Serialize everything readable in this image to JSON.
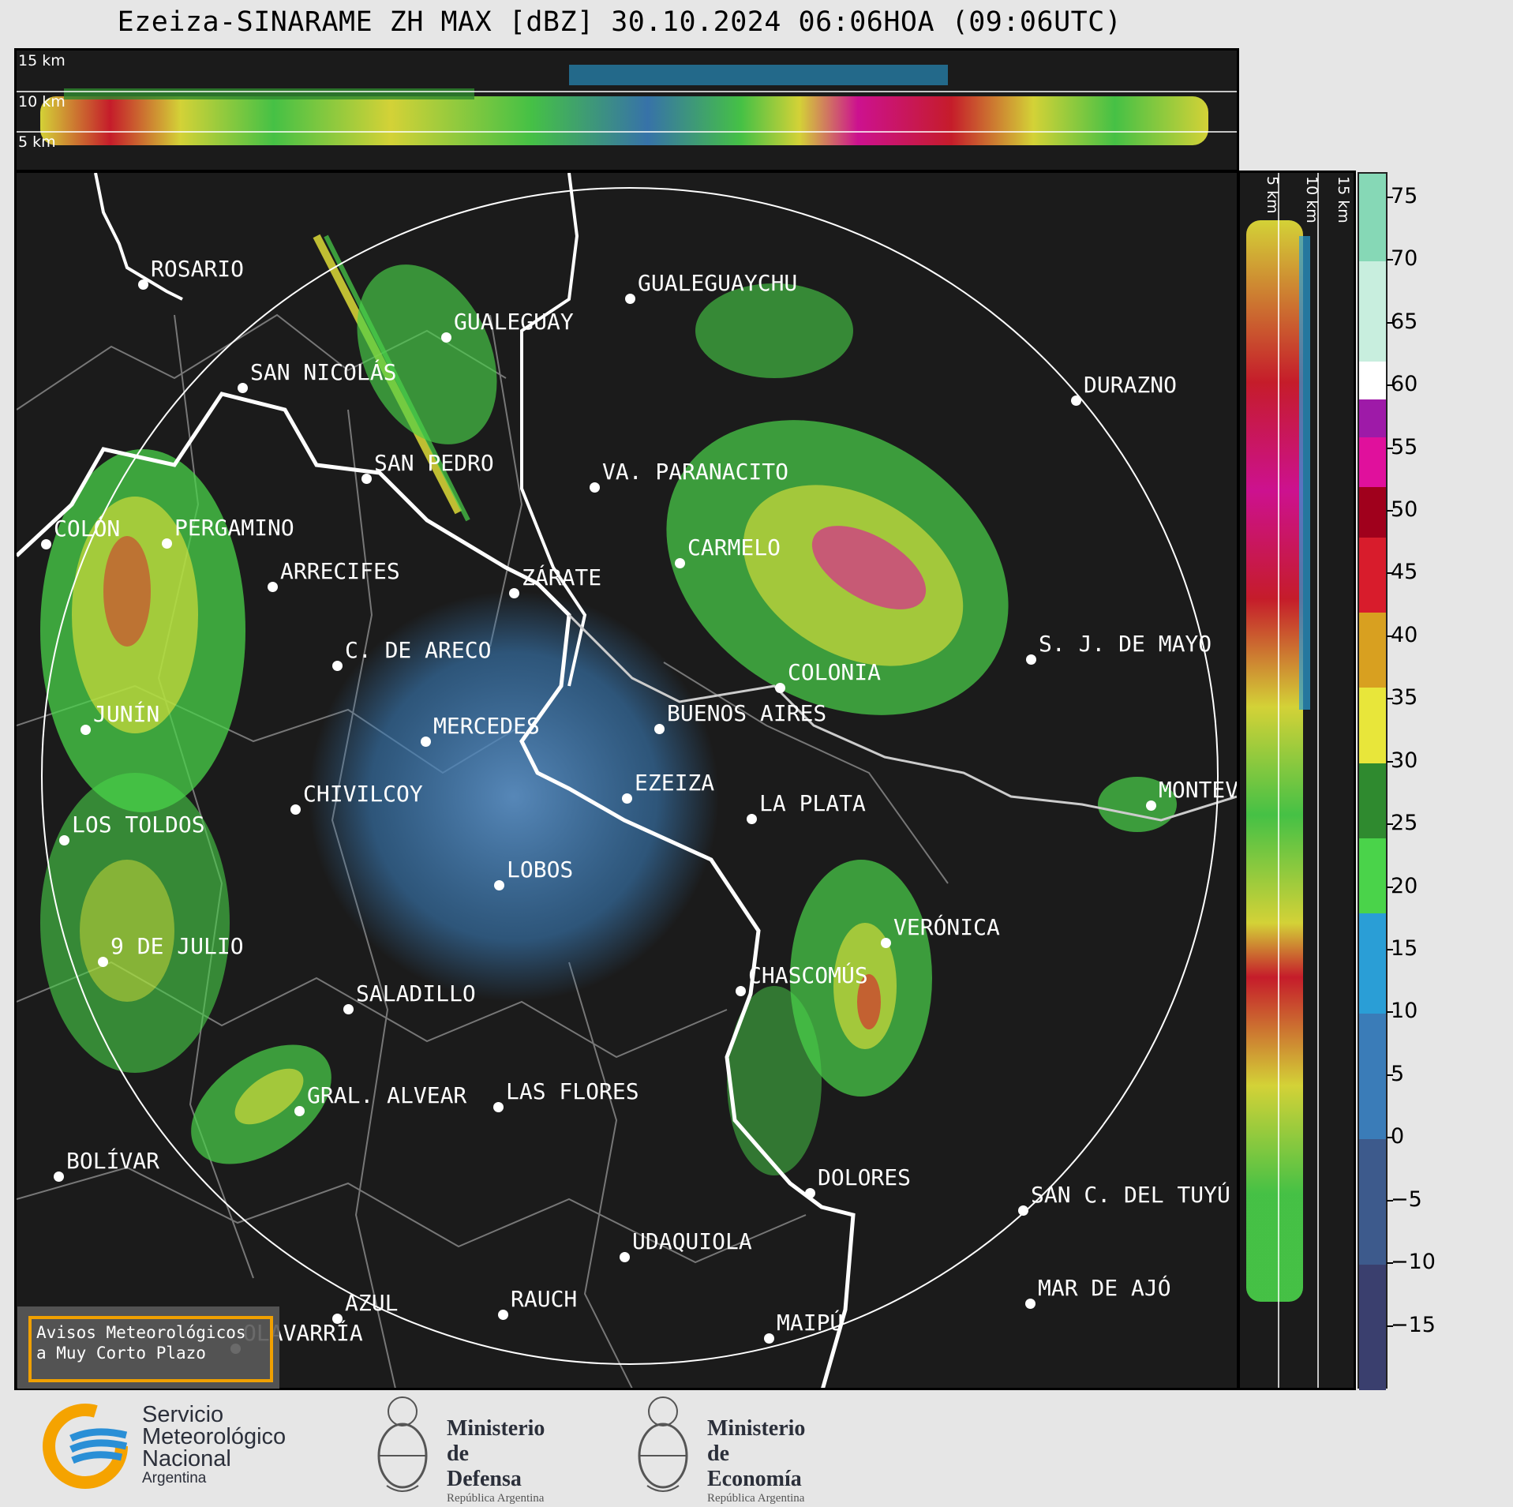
{
  "title": "Ezeiza-SINARAME ZH MAX [dBZ] 30.10.2024 06:06HOA (09:06UTC)",
  "top_panel": {
    "height_labels": [
      "15 km",
      "10 km",
      "5 km"
    ]
  },
  "side_panel": {
    "height_labels": [
      "5 km",
      "10 km",
      "15 km"
    ]
  },
  "colorbar": {
    "unit": "dBZ",
    "ticks": [
      "75",
      "70",
      "65",
      "60",
      "55",
      "50",
      "45",
      "40",
      "35",
      "30",
      "25",
      "20",
      "15",
      "10",
      "5",
      "0",
      "−5",
      "−10",
      "−15"
    ],
    "range": [
      -20,
      77
    ],
    "bands": [
      {
        "from": -20,
        "to": -10,
        "color": "#3a3f6e"
      },
      {
        "from": -10,
        "to": 0,
        "color": "#3d5a8c"
      },
      {
        "from": 0,
        "to": 10,
        "color": "#3a7cb8"
      },
      {
        "from": 10,
        "to": 18,
        "color": "#2a9ed6"
      },
      {
        "from": 18,
        "to": 24,
        "color": "#4ad34a"
      },
      {
        "from": 24,
        "to": 30,
        "color": "#2f8a2f"
      },
      {
        "from": 30,
        "to": 36,
        "color": "#e8e63a"
      },
      {
        "from": 36,
        "to": 42,
        "color": "#d8a020"
      },
      {
        "from": 42,
        "to": 48,
        "color": "#d81c2c"
      },
      {
        "from": 48,
        "to": 52,
        "color": "#a0001c"
      },
      {
        "from": 52,
        "to": 56,
        "color": "#e0109c"
      },
      {
        "from": 56,
        "to": 59,
        "color": "#9e1aa8"
      },
      {
        "from": 59,
        "to": 62,
        "color": "#ffffff"
      },
      {
        "from": 62,
        "to": 70,
        "color": "#c8eede"
      },
      {
        "from": 70,
        "to": 77,
        "color": "#86d8b6"
      }
    ]
  },
  "cities": [
    {
      "name": "ROSARIO"
    },
    {
      "name": "GUALEGUAYCHU"
    },
    {
      "name": "GUALEGUAY"
    },
    {
      "name": "SAN NICOLÁS"
    },
    {
      "name": "DURAZNO"
    },
    {
      "name": "SAN PEDRO"
    },
    {
      "name": "VA. PARANACITO"
    },
    {
      "name": "COLÓN"
    },
    {
      "name": "PERGAMINO"
    },
    {
      "name": "CARMELO"
    },
    {
      "name": "ARRECIFES"
    },
    {
      "name": "ZÁRATE"
    },
    {
      "name": "S. J. DE MAYO"
    },
    {
      "name": "C. DE ARECO"
    },
    {
      "name": "COLONIA"
    },
    {
      "name": "JUNÍN"
    },
    {
      "name": "MERCEDES"
    },
    {
      "name": "BUENOS AIRES"
    },
    {
      "name": "EZEIZA"
    },
    {
      "name": "MONTEVIDEO"
    },
    {
      "name": "CHIVILCOY"
    },
    {
      "name": "LA PLATA"
    },
    {
      "name": "LOS TOLDOS"
    },
    {
      "name": "LOBOS"
    },
    {
      "name": "VERÓNICA"
    },
    {
      "name": "9 DE JULIO"
    },
    {
      "name": "CHASCOMÚS"
    },
    {
      "name": "SALADILLO"
    },
    {
      "name": "GRAL. ALVEAR"
    },
    {
      "name": "LAS FLORES"
    },
    {
      "name": "BOLÍVAR"
    },
    {
      "name": "DOLORES"
    },
    {
      "name": "SAN C. DEL TUYÚ"
    },
    {
      "name": "UDAQUIOLA"
    },
    {
      "name": "MAR DE AJÓ"
    },
    {
      "name": "AZUL"
    },
    {
      "name": "RAUCH"
    },
    {
      "name": "OLAVARRÍA"
    },
    {
      "name": "MAIPÚ"
    }
  ],
  "warnings_button": {
    "line1": "Avisos Meteorológicos",
    "line2": "a Muy Corto Plazo"
  },
  "logos": {
    "smn": {
      "line1": "Servicio",
      "line2": "Meteorológico",
      "line3": "Nacional",
      "line4": "Argentina"
    },
    "defensa": {
      "line1": "Ministerio",
      "line2": "de Defensa",
      "line3": "República Argentina"
    },
    "economia": {
      "line1": "Ministerio",
      "line2": "de Economía",
      "line3": "República Argentina"
    }
  }
}
